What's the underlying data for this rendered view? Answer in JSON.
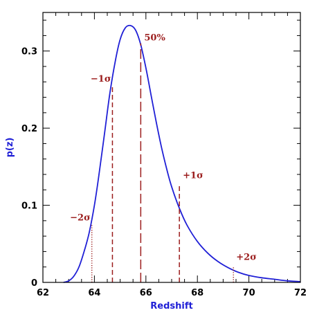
{
  "chart_data": {
    "type": "line",
    "title": "",
    "xlabel": "Redshift",
    "ylabel": "p(z)",
    "xlim": [
      62,
      72
    ],
    "ylim": [
      0,
      0.35
    ],
    "xticks": [
      62,
      64,
      66,
      68,
      70,
      72
    ],
    "yticks": [
      0,
      0.1,
      0.2,
      0.3
    ],
    "ytick_labels": [
      "0",
      "0.1",
      "0.2",
      "0.3"
    ],
    "grid": false,
    "colors": {
      "curve": "#1f1fd6",
      "markers": "#9b1c1c",
      "axis_title": "#1f1fd6"
    },
    "series": [
      {
        "x": [
          62.8,
          63.0,
          63.2,
          63.4,
          63.6,
          63.8,
          64.0,
          64.2,
          64.4,
          64.6,
          64.8,
          65.0,
          65.2,
          65.4,
          65.6,
          65.8,
          66.0,
          66.2,
          66.4,
          66.6,
          66.8,
          67.0,
          67.3,
          67.6,
          68.0,
          68.4,
          68.8,
          69.2,
          69.6,
          70.0,
          70.5,
          71.0,
          71.5,
          72.0
        ],
        "y": [
          0.0,
          0.002,
          0.008,
          0.02,
          0.04,
          0.065,
          0.1,
          0.145,
          0.195,
          0.245,
          0.285,
          0.315,
          0.33,
          0.333,
          0.327,
          0.308,
          0.278,
          0.243,
          0.208,
          0.176,
          0.148,
          0.124,
          0.096,
          0.074,
          0.053,
          0.038,
          0.027,
          0.019,
          0.013,
          0.009,
          0.006,
          0.004,
          0.002,
          0.001
        ]
      }
    ],
    "markers": [
      {
        "label": "−2σ",
        "x": 63.9,
        "y": 0.075,
        "style": "dotted"
      },
      {
        "label": "−1σ",
        "x": 64.7,
        "y": 0.255,
        "style": "dashed"
      },
      {
        "label": "50%",
        "x": 65.8,
        "y": 0.31,
        "style": "long-dashed"
      },
      {
        "label": "+1σ",
        "x": 67.3,
        "y": 0.128,
        "style": "dashed"
      },
      {
        "label": "+2σ",
        "x": 69.4,
        "y": 0.02,
        "style": "dotted"
      }
    ]
  }
}
